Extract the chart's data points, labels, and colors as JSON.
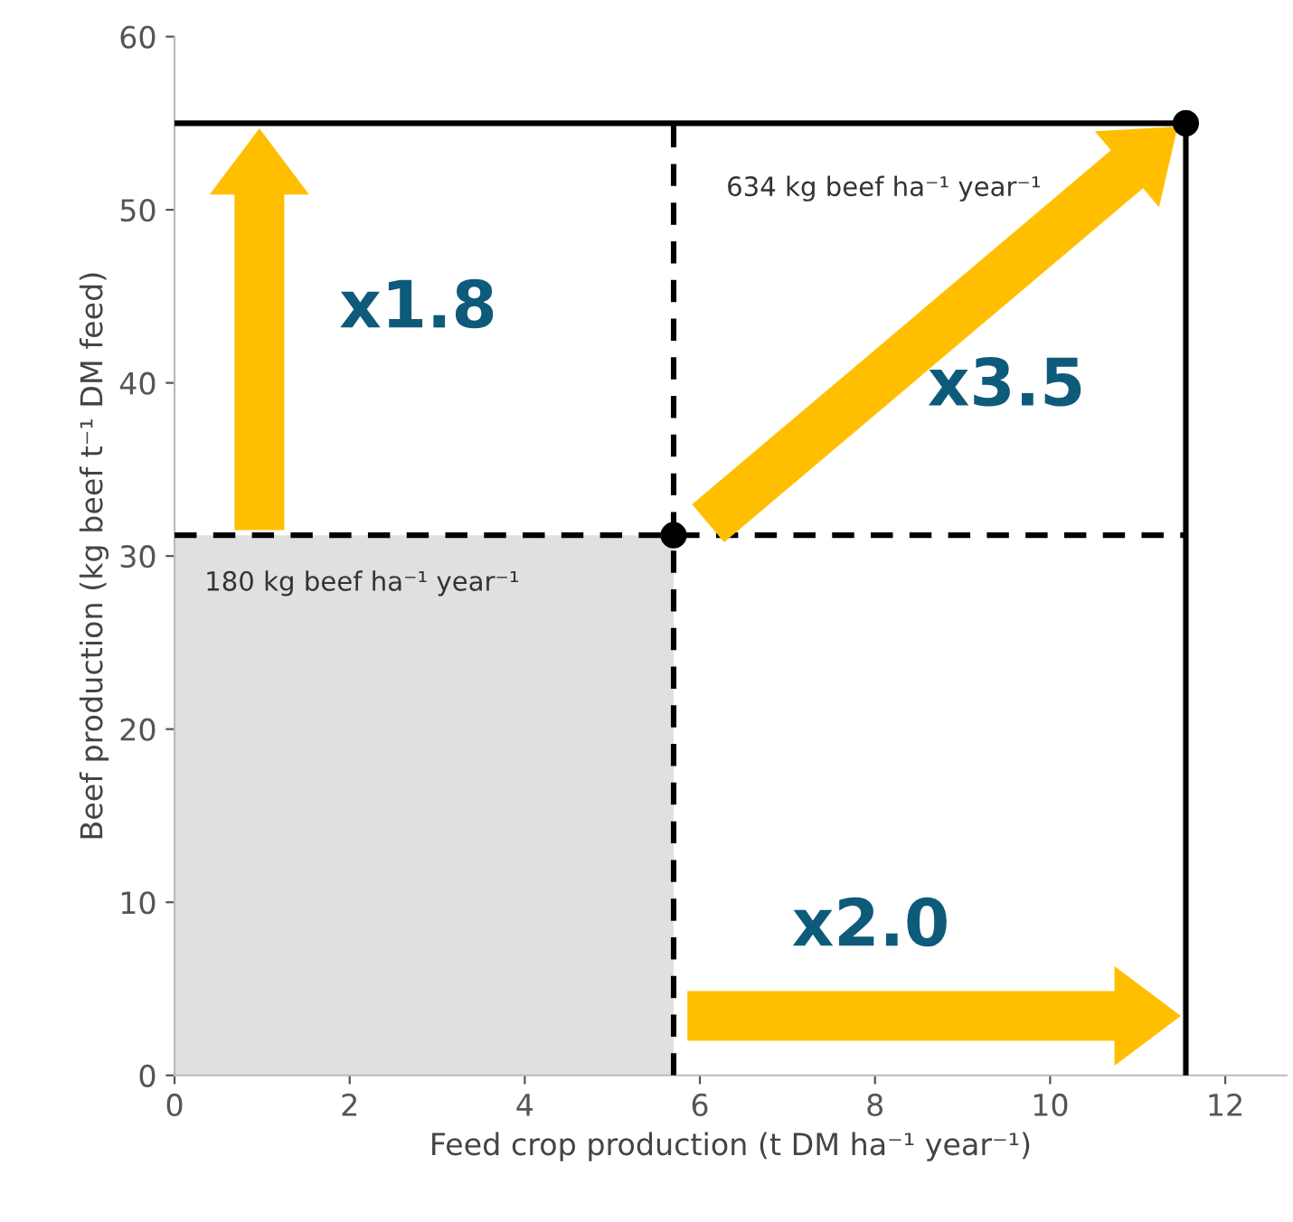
{
  "chart_data": {
    "type": "scatter",
    "xlabel": "Feed crop production (t DM ha⁻¹ year⁻¹)",
    "ylabel": "Beef production (kg beef t⁻¹ DM feed)",
    "xlim": [
      0,
      12.7
    ],
    "ylim": [
      0,
      60
    ],
    "xticks": [
      0,
      2,
      4,
      6,
      8,
      10,
      12
    ],
    "yticks": [
      0,
      10,
      20,
      30,
      40,
      50,
      60
    ],
    "grid": false,
    "series": [
      {
        "type": "area",
        "color": "#e0e0e0",
        "x": [
          0,
          5.7
        ],
        "values": [
          31.2,
          31.2
        ]
      },
      {
        "type": "line",
        "line_style": "dashed",
        "color": "#000000",
        "x": [
          0,
          11.55
        ],
        "values": [
          31.2,
          31.2
        ]
      },
      {
        "type": "line",
        "line_style": "dashed",
        "color": "#000000",
        "x": [
          5.7,
          5.7
        ],
        "values": [
          0,
          55
        ]
      },
      {
        "type": "line",
        "line_style": "solid",
        "color": "#000000",
        "x": [
          0,
          11.55
        ],
        "values": [
          55,
          55
        ]
      },
      {
        "type": "line",
        "line_style": "solid",
        "color": "#000000",
        "x": [
          11.55,
          11.55
        ],
        "values": [
          0,
          55
        ]
      },
      {
        "marker": "circle",
        "color": "#000000",
        "x": [
          5.7,
          11.55
        ],
        "values": [
          31.2,
          55
        ]
      }
    ],
    "annotations": [
      "180 kg beef ha⁻¹ year⁻¹",
      "634 kg beef ha⁻¹ year⁻¹",
      "x1.8",
      "x3.5",
      "x2.0"
    ]
  }
}
